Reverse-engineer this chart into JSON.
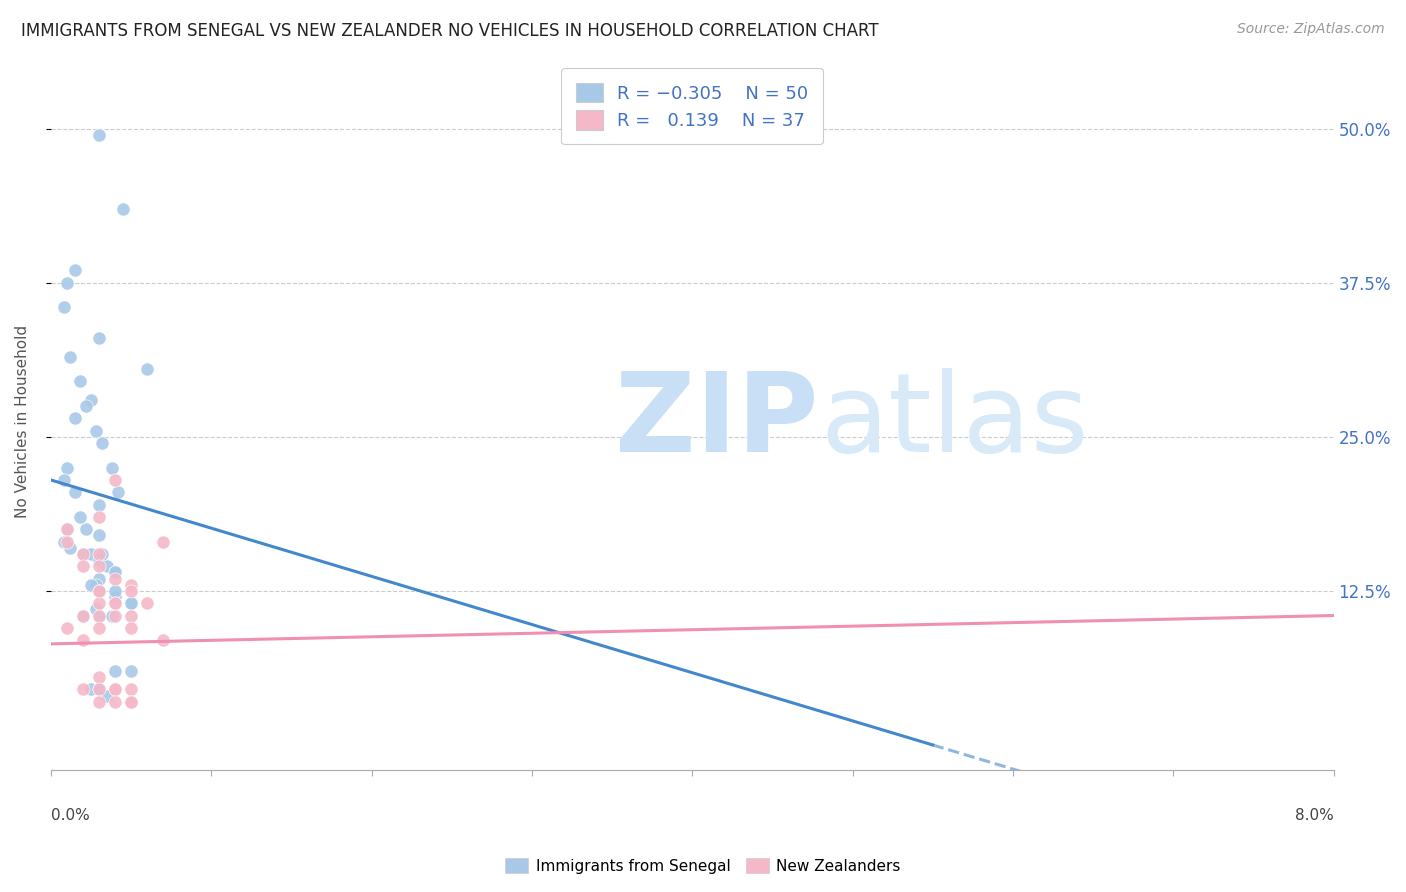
{
  "title": "IMMIGRANTS FROM SENEGAL VS NEW ZEALANDER NO VEHICLES IN HOUSEHOLD CORRELATION CHART",
  "source": "Source: ZipAtlas.com",
  "ylabel": "No Vehicles in Household",
  "yticks_right": [
    "50.0%",
    "37.5%",
    "25.0%",
    "12.5%"
  ],
  "ytick_vals": [
    0.5,
    0.375,
    0.25,
    0.125
  ],
  "xmin": 0.0,
  "xmax": 0.08,
  "ymin": -0.02,
  "ymax": 0.545,
  "color_blue": "#a8c8e8",
  "color_pink": "#f4b8c8",
  "color_blue_line": "#4488cc",
  "color_pink_line": "#f090b0",
  "blue_scatter_x": [
    0.0015,
    0.003,
    0.0045,
    0.003,
    0.006,
    0.001,
    0.0008,
    0.0012,
    0.0018,
    0.0025,
    0.0022,
    0.0015,
    0.0028,
    0.0032,
    0.0038,
    0.0042,
    0.003,
    0.001,
    0.0008,
    0.0015,
    0.0018,
    0.001,
    0.0008,
    0.0012,
    0.002,
    0.0025,
    0.003,
    0.0035,
    0.004,
    0.003,
    0.0028,
    0.002,
    0.003,
    0.004,
    0.005,
    0.003,
    0.0022,
    0.003,
    0.0032,
    0.004,
    0.0025,
    0.004,
    0.0028,
    0.005,
    0.0038,
    0.004,
    0.005,
    0.0025,
    0.003,
    0.0035
  ],
  "blue_scatter_y": [
    0.385,
    0.495,
    0.435,
    0.33,
    0.305,
    0.375,
    0.355,
    0.315,
    0.295,
    0.28,
    0.275,
    0.265,
    0.255,
    0.245,
    0.225,
    0.205,
    0.195,
    0.225,
    0.215,
    0.205,
    0.185,
    0.175,
    0.165,
    0.16,
    0.155,
    0.155,
    0.15,
    0.145,
    0.14,
    0.135,
    0.13,
    0.105,
    0.125,
    0.12,
    0.115,
    0.105,
    0.175,
    0.17,
    0.155,
    0.14,
    0.13,
    0.125,
    0.11,
    0.115,
    0.105,
    0.06,
    0.06,
    0.045,
    0.045,
    0.04
  ],
  "pink_scatter_x": [
    0.001,
    0.001,
    0.002,
    0.002,
    0.003,
    0.003,
    0.004,
    0.005,
    0.003,
    0.004,
    0.005,
    0.006,
    0.003,
    0.005,
    0.007,
    0.003,
    0.004,
    0.003,
    0.005,
    0.002,
    0.001,
    0.007,
    0.002,
    0.003,
    0.004,
    0.003,
    0.004,
    0.003,
    0.004,
    0.005,
    0.003,
    0.002,
    0.004,
    0.005,
    0.003,
    0.004,
    0.005
  ],
  "pink_scatter_y": [
    0.175,
    0.165,
    0.155,
    0.145,
    0.155,
    0.145,
    0.135,
    0.13,
    0.125,
    0.115,
    0.125,
    0.115,
    0.105,
    0.105,
    0.165,
    0.115,
    0.105,
    0.095,
    0.095,
    0.085,
    0.095,
    0.085,
    0.105,
    0.185,
    0.215,
    0.125,
    0.115,
    0.055,
    0.045,
    0.045,
    0.045,
    0.045,
    0.045,
    0.035,
    0.035,
    0.035,
    0.035
  ],
  "blue_line_x0": 0.0,
  "blue_line_y0": 0.215,
  "blue_line_x1": 0.055,
  "blue_line_y1": 0.0,
  "blue_line_x1_dash": 0.055,
  "blue_line_x2_dash": 0.072,
  "pink_line_x0": 0.0,
  "pink_line_y0": 0.082,
  "pink_line_x1": 0.08,
  "pink_line_y1": 0.105
}
